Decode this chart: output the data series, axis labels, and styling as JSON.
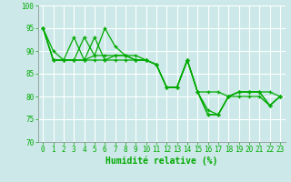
{
  "xlabel": "Humidité relative (%)",
  "bg_color": "#cce8e8",
  "grid_color": "#ffffff",
  "line_color": "#00aa00",
  "xlim": [
    0,
    23
  ],
  "ylim": [
    70,
    100
  ],
  "yticks": [
    70,
    75,
    80,
    85,
    90,
    95,
    100
  ],
  "xtick_labels": [
    "0",
    "1",
    "2",
    "3",
    "4",
    "5",
    "6",
    "7",
    "8",
    "9",
    "10",
    "11",
    "12",
    "13",
    "14",
    "15",
    "16",
    "17",
    "18",
    "19",
    "20",
    "21",
    "22",
    "23"
  ],
  "series": [
    [
      95,
      88,
      88,
      88,
      93,
      89,
      95,
      91,
      89,
      89,
      88,
      87,
      82,
      82,
      88,
      81,
      81,
      81,
      80,
      81,
      81,
      81,
      81,
      80
    ],
    [
      95,
      88,
      88,
      93,
      88,
      93,
      88,
      89,
      89,
      88,
      88,
      87,
      82,
      82,
      88,
      81,
      77,
      76,
      80,
      80,
      80,
      80,
      78,
      80
    ],
    [
      95,
      90,
      88,
      88,
      88,
      89,
      89,
      89,
      89,
      88,
      88,
      87,
      82,
      82,
      88,
      81,
      76,
      76,
      80,
      81,
      81,
      81,
      78,
      80
    ],
    [
      95,
      88,
      88,
      88,
      88,
      88,
      88,
      88,
      88,
      88,
      88,
      87,
      82,
      82,
      88,
      81,
      76,
      76,
      80,
      81,
      81,
      81,
      78,
      80
    ]
  ]
}
